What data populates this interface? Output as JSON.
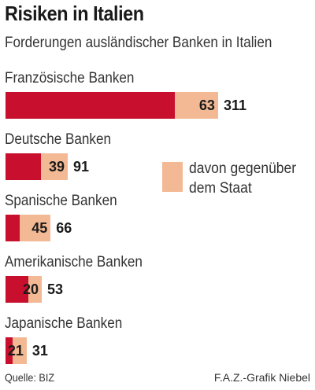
{
  "title": "Risiken in Italien",
  "subtitle": "Forderungen ausländischer Banken in Italien",
  "legend": {
    "state_label": "davon gegenüber dem Staat"
  },
  "footer": {
    "source": "Quelle: BIZ",
    "credit": "F.A.Z.-Grafik Niebel"
  },
  "colors": {
    "total": "#c8102e",
    "state": "#f2b994"
  },
  "chart_data": {
    "type": "bar",
    "orientation": "horizontal",
    "categories": [
      "Französische Banken",
      "Deutsche Banken",
      "Spanische Banken",
      "Amerikanische Banken",
      "Japanische Banken"
    ],
    "series": [
      {
        "name": "",
        "values": [
          311,
          91,
          66,
          53,
          31
        ]
      },
      {
        "name": "davon gegenüber dem Staat",
        "values": [
          63,
          39,
          45,
          20,
          21
        ]
      }
    ],
    "title": "Risiken in Italien",
    "subtitle": "Forderungen ausländischer Banken in Italien",
    "grid": false,
    "legend_position": "right"
  }
}
